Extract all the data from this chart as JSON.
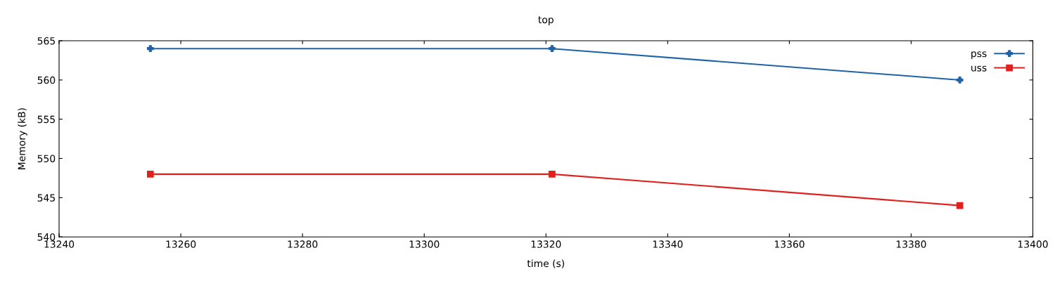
{
  "chart_data": {
    "type": "line",
    "title": "top",
    "xlabel": "time (s)",
    "ylabel": "Memory (kB)",
    "x": [
      13255,
      13321,
      13388
    ],
    "series": [
      {
        "name": "pss",
        "color": "#1f63a8",
        "marker": "cross",
        "values": [
          564,
          564,
          560
        ]
      },
      {
        "name": "uss",
        "color": "#e0211d",
        "marker": "square",
        "values": [
          548,
          548,
          544
        ]
      }
    ],
    "xlim": [
      13240,
      13400
    ],
    "xticks": [
      13240,
      13260,
      13280,
      13300,
      13320,
      13340,
      13360,
      13380,
      13400
    ],
    "ylim": [
      540,
      565
    ],
    "yticks": [
      540,
      545,
      550,
      555,
      560,
      565
    ],
    "legend": "top right",
    "grid": false,
    "line_style": "solid"
  }
}
